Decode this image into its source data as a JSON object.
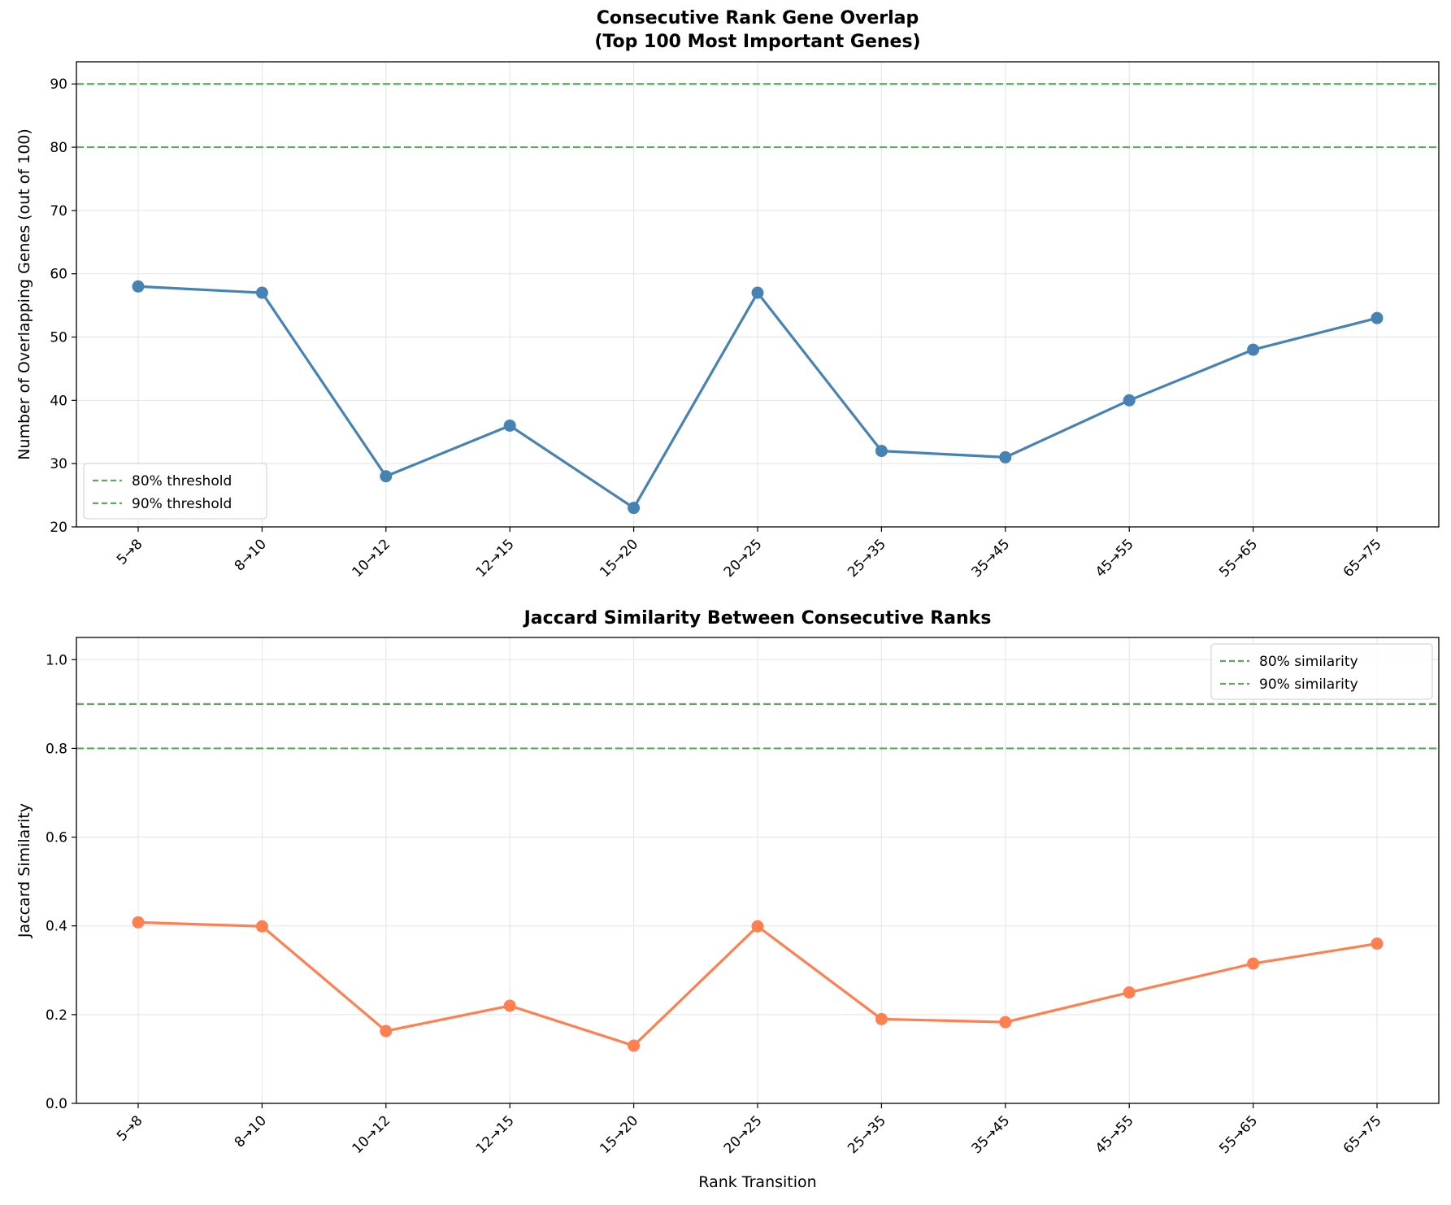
{
  "chart_data": [
    {
      "type": "line",
      "title_lines": [
        "Consecutive Rank Gene Overlap",
        "(Top 100 Most Important Genes)"
      ],
      "xlabel": "",
      "ylabel": "Number of Overlapping Genes (out of 100)",
      "categories": [
        "5→8",
        "8→10",
        "10→12",
        "12→15",
        "15→20",
        "20→25",
        "25→35",
        "35→45",
        "45→55",
        "55→65",
        "65→75"
      ],
      "series": [
        {
          "values": [
            58,
            57,
            28,
            36,
            23,
            57,
            32,
            31,
            40,
            48,
            53
          ],
          "color": "#4682b4"
        }
      ],
      "ylim": [
        20,
        93.5
      ],
      "yticks": [
        20,
        30,
        40,
        50,
        60,
        70,
        80,
        90
      ],
      "yticklabels": [
        "20",
        "30",
        "40",
        "50",
        "60",
        "70",
        "80",
        "90"
      ],
      "reference_lines": [
        {
          "value": 80,
          "label": "80% threshold",
          "color": "#5aaa5a",
          "style": "dashed"
        },
        {
          "value": 90,
          "label": "90% threshold",
          "color": "#5aaa5a",
          "style": "dashed"
        }
      ],
      "legend_position": "lower-left",
      "grid": true
    },
    {
      "type": "line",
      "title_lines": [
        "Jaccard Similarity Between Consecutive Ranks"
      ],
      "xlabel": "Rank Transition",
      "ylabel": "Jaccard Similarity",
      "categories": [
        "5→8",
        "8→10",
        "10→12",
        "12→15",
        "15→20",
        "20→25",
        "25→35",
        "35→45",
        "45→55",
        "55→65",
        "65→75"
      ],
      "series": [
        {
          "values": [
            0.408,
            0.399,
            0.163,
            0.22,
            0.13,
            0.399,
            0.19,
            0.183,
            0.25,
            0.315,
            0.36
          ],
          "color": "#ff7f50"
        }
      ],
      "ylim": [
        0,
        1.05
      ],
      "yticks": [
        0,
        0.2,
        0.4,
        0.6,
        0.8,
        1.0
      ],
      "yticklabels": [
        "0.0",
        "0.2",
        "0.4",
        "0.6",
        "0.8",
        "1.0"
      ],
      "reference_lines": [
        {
          "value": 0.8,
          "label": "80% similarity",
          "color": "#5aaa5a",
          "style": "dashed"
        },
        {
          "value": 0.9,
          "label": "90% similarity",
          "color": "#5aaa5a",
          "style": "dashed"
        }
      ],
      "legend_position": "upper-right",
      "grid": true
    }
  ]
}
